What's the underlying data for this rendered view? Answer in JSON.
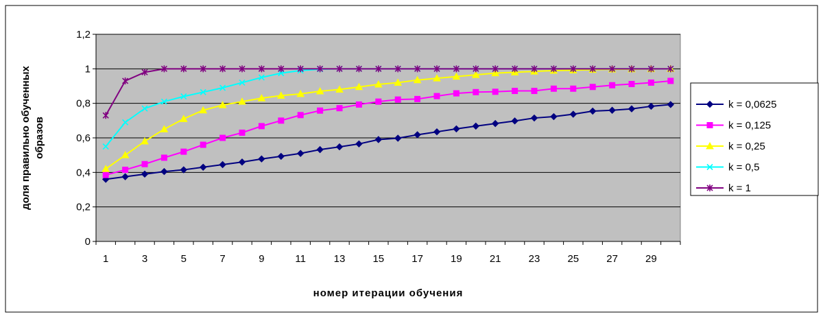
{
  "chart_data": {
    "type": "line",
    "title": "",
    "xlabel": "номер итерации обучения",
    "ylabel_lines": [
      "доля правильно обученных",
      "образов"
    ],
    "x": [
      1,
      2,
      3,
      4,
      5,
      6,
      7,
      8,
      9,
      10,
      11,
      12,
      13,
      14,
      15,
      16,
      17,
      18,
      19,
      20,
      21,
      22,
      23,
      24,
      25,
      26,
      27,
      28,
      29,
      30
    ],
    "x_tick_labels": [
      "1",
      "3",
      "5",
      "7",
      "9",
      "11",
      "13",
      "15",
      "17",
      "19",
      "21",
      "23",
      "25",
      "27",
      "29"
    ],
    "ylim": [
      0,
      1.2
    ],
    "y_ticks": [
      0,
      0.2,
      0.4,
      0.6,
      0.8,
      1.0,
      1.2
    ],
    "y_tick_labels": [
      "0",
      "0,2",
      "0,4",
      "0,6",
      "0,8",
      "1",
      "1,2"
    ],
    "grid": "horizontal",
    "plot_background": "#c0c0c0",
    "legend_position": "right",
    "series": [
      {
        "name": "k = 0,0625",
        "color": "#000080",
        "marker": "diamond",
        "values": [
          0.36,
          0.375,
          0.39,
          0.405,
          0.415,
          0.43,
          0.445,
          0.46,
          0.478,
          0.493,
          0.51,
          0.532,
          0.548,
          0.565,
          0.59,
          0.598,
          0.618,
          0.635,
          0.652,
          0.668,
          0.683,
          0.698,
          0.715,
          0.723,
          0.737,
          0.755,
          0.76,
          0.768,
          0.783,
          0.793
        ]
      },
      {
        "name": "k = 0,125",
        "color": "#ff00ff",
        "marker": "square",
        "values": [
          0.385,
          0.415,
          0.448,
          0.485,
          0.52,
          0.56,
          0.6,
          0.63,
          0.668,
          0.7,
          0.732,
          0.758,
          0.772,
          0.793,
          0.81,
          0.822,
          0.825,
          0.842,
          0.858,
          0.865,
          0.867,
          0.872,
          0.872,
          0.885,
          0.885,
          0.895,
          0.905,
          0.912,
          0.92,
          0.93
        ]
      },
      {
        "name": "k = 0,25",
        "color": "#ffff00",
        "marker": "triangle",
        "values": [
          0.42,
          0.5,
          0.58,
          0.65,
          0.71,
          0.76,
          0.79,
          0.81,
          0.83,
          0.845,
          0.855,
          0.87,
          0.88,
          0.895,
          0.91,
          0.92,
          0.935,
          0.945,
          0.955,
          0.965,
          0.975,
          0.98,
          0.985,
          0.99,
          0.992,
          0.995,
          0.997,
          0.998,
          0.999,
          1.0
        ]
      },
      {
        "name": "k = 0,5",
        "color": "#00ffff",
        "marker": "x",
        "values": [
          0.55,
          0.69,
          0.77,
          0.81,
          0.84,
          0.865,
          0.89,
          0.92,
          0.95,
          0.975,
          0.99,
          0.998,
          1.0,
          1.0,
          1.0,
          1.0,
          1.0,
          1.0,
          1.0,
          1.0,
          1.0,
          1.0,
          1.0,
          1.0,
          1.0,
          1.0,
          1.0,
          1.0,
          1.0,
          1.0
        ]
      },
      {
        "name": "k = 1",
        "color": "#800080",
        "marker": "star",
        "values": [
          0.73,
          0.93,
          0.98,
          1.0,
          1.0,
          1.0,
          1.0,
          1.0,
          1.0,
          1.0,
          1.0,
          1.0,
          1.0,
          1.0,
          1.0,
          1.0,
          1.0,
          1.0,
          1.0,
          1.0,
          1.0,
          1.0,
          1.0,
          1.0,
          1.0,
          1.0,
          1.0,
          1.0,
          1.0,
          1.0
        ]
      }
    ]
  }
}
